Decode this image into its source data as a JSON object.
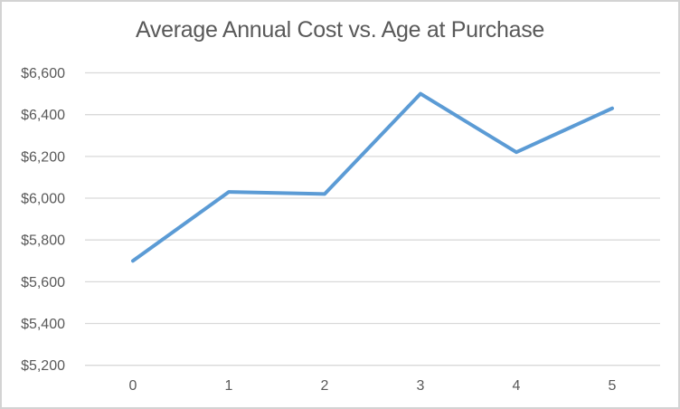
{
  "frame": {
    "background": "#ffffff",
    "border_color": "#d3d3d3"
  },
  "chart_data": {
    "type": "line",
    "title": "Average Annual Cost vs. Age at Purchase",
    "xlabel": "",
    "ylabel": "",
    "categories": [
      "0",
      "1",
      "2",
      "3",
      "4",
      "5"
    ],
    "values": [
      5700,
      6030,
      6020,
      6500,
      6220,
      6430
    ],
    "ylim": [
      5200,
      6600
    ],
    "ytick_step": 200,
    "ytick_labels": [
      "$5,200",
      "$5,400",
      "$5,600",
      "$5,800",
      "$6,000",
      "$6,200",
      "$6,400",
      "$6,600"
    ],
    "grid": "horizontal-only",
    "legend": "none",
    "colors": {
      "line": "#5b9bd5",
      "gridline": "#d9d9d9",
      "text": "#595959"
    }
  }
}
